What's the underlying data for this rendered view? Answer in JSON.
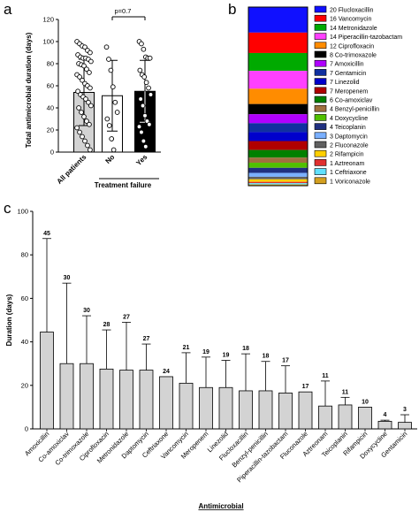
{
  "panels": {
    "a": "a",
    "b": "b",
    "c": "c"
  },
  "chart_data": [
    {
      "type": "bar",
      "panel": "a",
      "categories": [
        "All patients",
        "No",
        "Yes"
      ],
      "values": [
        54,
        51,
        55
      ],
      "errors_sd": [
        30,
        32,
        28
      ],
      "bar_colors": [
        "#d3d3d3",
        "#ffffff",
        "#000000"
      ],
      "points": [
        [
          100,
          98,
          96,
          95,
          92,
          90,
          88,
          86,
          85,
          85,
          84,
          82,
          80,
          79,
          78,
          75,
          72,
          70,
          68,
          65,
          62,
          60,
          58,
          55,
          52,
          50,
          48,
          45,
          42,
          40,
          36,
          32,
          28,
          25,
          22,
          18,
          14,
          10,
          6,
          2
        ],
        [
          95,
          84,
          74,
          59,
          45,
          36,
          30,
          24,
          12,
          2
        ],
        [
          100,
          98,
          93,
          86,
          85,
          85,
          74,
          70,
          68,
          63,
          58,
          52,
          48,
          42,
          33,
          28,
          25,
          23,
          18,
          10,
          5
        ]
      ],
      "ylabel": "Total antimicrobial duration (days)",
      "group_label": "Treatment failure",
      "annotation": "p=0.7",
      "ylim": [
        0,
        120
      ],
      "yticks": [
        "0",
        "20",
        "40",
        "60",
        "80",
        "100",
        "120"
      ]
    },
    {
      "type": "stacked-bar",
      "panel": "b",
      "categories": [
        "Flucloxacillin",
        "Vancomycin",
        "Metronidazole",
        "Piperacillin-tazobactam",
        "Ciprofloxacin",
        "Co-trimoxazole",
        "Amoxicillin",
        "Gentamicin",
        "Linezolid",
        "Meropenem",
        "Co-amoxiclav",
        "Benzyl-penicillin",
        "Doxycycline",
        "Teicoplanin",
        "Daptomycin",
        "Fluconazole",
        "Rifampicin",
        "Aztreonam",
        "Ceftriaxone",
        "Voriconazole"
      ],
      "legend_labels": [
        "20 Flucloxacillin",
        "16 Vancomycin",
        "14 Metronidazole",
        "14 Piperacillin-tazobactam",
        "12 Ciprofloxacin",
        "8 Co-trimoxazole",
        "7 Amoxicillin",
        "7 Gentamicin",
        "7 Linezolid",
        "7 Meropenem",
        "6 Co-amoxiclav",
        "4 Benzyl-penicillin",
        "4 Doxycycline",
        "4 Teicoplanin",
        "3 Daptomycin",
        "2 Fluconazole",
        "2 Rifampicin",
        "1 Aztreonam",
        "1 Ceftriaxone",
        "1 Voriconazole"
      ],
      "values": [
        20,
        16,
        14,
        14,
        12,
        8,
        7,
        7,
        7,
        7,
        6,
        4,
        4,
        4,
        3,
        2,
        2,
        1,
        1,
        1
      ],
      "colors": [
        "#1010ff",
        "#ff0000",
        "#00aa00",
        "#ff40ff",
        "#ff8c00",
        "#000000",
        "#b000ff",
        "#1030a0",
        "#0000cc",
        "#b00000",
        "#008000",
        "#a07040",
        "#50c000",
        "#203080",
        "#7ab0ff",
        "#606060",
        "#ffd000",
        "#e03030",
        "#60e0ff",
        "#d4a020"
      ]
    },
    {
      "type": "bar",
      "panel": "c",
      "categories": [
        "Amoxicillin",
        "Co-amoxiclav",
        "Co-trimoxazole",
        "Ciprofloxacin",
        "Metronidazole",
        "Daptomycin",
        "Ceftriaxone",
        "Vancomycin",
        "Meropenem",
        "Linezolid",
        "Flucloxacillin",
        "Benzyl-penicillin",
        "Piperacillin-tazobactam",
        "Fluconazole",
        "Aztreonam",
        "Teicoplanin",
        "Rifampicin",
        "Doxycycline",
        "Gentamicin"
      ],
      "values": [
        44.5,
        30,
        30,
        27.5,
        27,
        27,
        24,
        21,
        19,
        19,
        17.5,
        17.5,
        16.5,
        17,
        10.5,
        11,
        10,
        3.5,
        3
      ],
      "errors": [
        43,
        37,
        22,
        18,
        22,
        12,
        0,
        14,
        14,
        12.5,
        17,
        13.5,
        12.5,
        0,
        11.5,
        3.5,
        0,
        0.5,
        3.5
      ],
      "value_labels": [
        "45",
        "30",
        "30",
        "28",
        "27",
        "27",
        "24",
        "21",
        "19",
        "19",
        "18",
        "18",
        "17",
        "17",
        "11",
        "11",
        "10",
        "4",
        "3"
      ],
      "xlabel": "Antimicrobial",
      "ylabel": "Duration (days)",
      "ylim": [
        0,
        100
      ],
      "yticks": [
        "0",
        "20",
        "40",
        "60",
        "80",
        "100"
      ],
      "bar_color": "#d3d3d3"
    }
  ]
}
